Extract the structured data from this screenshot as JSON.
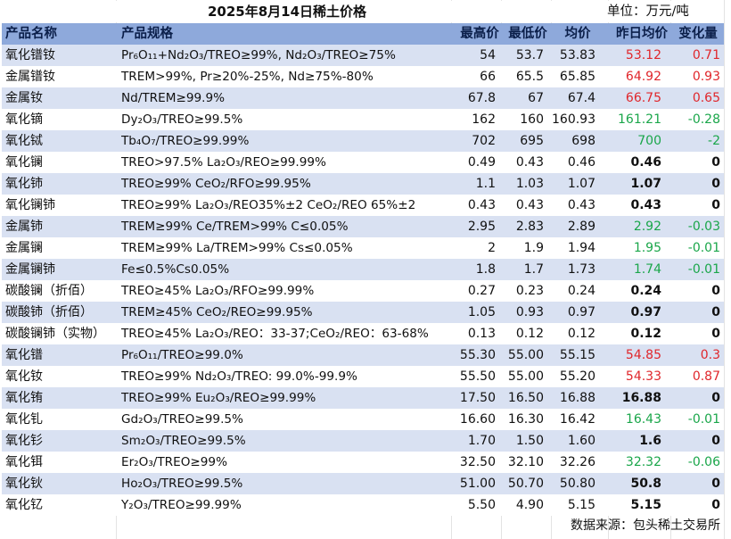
{
  "title": "2025年8月14日稀土价格",
  "unit": "单位：万元/吨",
  "headers": {
    "name": "产品名称",
    "spec": "产品规格",
    "high": "最高价",
    "low": "最低价",
    "avg": "均价",
    "prev": "昨日均价",
    "change": "变化量"
  },
  "rows": [
    {
      "name": "氧化镨钕",
      "spec": "Pr₆O₁₁+Nd₂O₃/TREO≥99%, Nd₂O₃/TREO≥75%",
      "high": "54",
      "low": "53.7",
      "avg": "53.83",
      "prev": "53.12",
      "change": "0.71",
      "trend": "up"
    },
    {
      "name": "金属镨钕",
      "spec": "TREM>99%, Pr≥20%-25%, Nd≥75%-80%",
      "high": "66",
      "low": "65.5",
      "avg": "65.85",
      "prev": "64.92",
      "change": "0.93",
      "trend": "up"
    },
    {
      "name": "金属钕",
      "spec": "Nd/TREM≥99.9%",
      "high": "67.8",
      "low": "67",
      "avg": "67.4",
      "prev": "66.75",
      "change": "0.65",
      "trend": "up"
    },
    {
      "name": "氧化镝",
      "spec": "Dy₂O₃/TREO≥99.5%",
      "high": "162",
      "low": "160",
      "avg": "160.93",
      "prev": "161.21",
      "change": "-0.28",
      "trend": "down"
    },
    {
      "name": "氧化铽",
      "spec": "Tb₄O₇/TREO≥99.99%",
      "high": "702",
      "low": "695",
      "avg": "698",
      "prev": "700",
      "change": "-2",
      "trend": "down"
    },
    {
      "name": "氧化镧",
      "spec": "TREO>97.5% La₂O₃/REO≥99.99%",
      "high": "0.49",
      "low": "0.43",
      "avg": "0.46",
      "prev": "0.46",
      "change": "0",
      "trend": "flat"
    },
    {
      "name": "氧化铈",
      "spec": "TREO≥99% CeO₂/RFO≥99.95%",
      "high": "1.1",
      "low": "1.03",
      "avg": "1.07",
      "prev": "1.07",
      "change": "0",
      "trend": "flat"
    },
    {
      "name": "氧化镧铈",
      "spec": "TREO≥99% La₂O₃/REO35%±2 CeO₂/REO 65%±2",
      "high": "0.43",
      "low": "0.43",
      "avg": "0.43",
      "prev": "0.43",
      "change": "0",
      "trend": "flat"
    },
    {
      "name": "金属铈",
      "spec": "TREM≥99% Ce/TREM>99% C≤0.05%",
      "high": "2.95",
      "low": "2.83",
      "avg": "2.89",
      "prev": "2.92",
      "change": "-0.03",
      "trend": "down"
    },
    {
      "name": "金属镧",
      "spec": "TREM≥99% La/TREM>99% Cs≤0.05%",
      "high": "2",
      "low": "1.9",
      "avg": "1.94",
      "prev": "1.95",
      "change": "-0.01",
      "trend": "down"
    },
    {
      "name": "金属镧铈",
      "spec": "Fe≤0.5%Cs0.05%",
      "high": "1.8",
      "low": "1.7",
      "avg": "1.73",
      "prev": "1.74",
      "change": "-0.01",
      "trend": "down"
    },
    {
      "name": "碳酸镧（折佰）",
      "spec": "TREO≥45% La₂O₃/RFO≥99.99%",
      "high": "0.27",
      "low": "0.23",
      "avg": "0.24",
      "prev": "0.24",
      "change": "0",
      "trend": "flat"
    },
    {
      "name": "碳酸铈（折佰）",
      "spec": "TREM≥45% CeO₂/REO≥99.95%",
      "high": "1.05",
      "low": "0.93",
      "avg": "0.97",
      "prev": "0.97",
      "change": "0",
      "trend": "flat"
    },
    {
      "name": "碳酸镧铈（实物）",
      "spec": "TREO≥45% La₂O₃/REO：33-37;CeO₂/REO：63-68%",
      "high": "0.13",
      "low": "0.12",
      "avg": "0.12",
      "prev": "0.12",
      "change": "0",
      "trend": "flat"
    },
    {
      "name": "氧化镨",
      "spec": "Pr₆O₁₁/TREO≥99.0%",
      "high": "55.30",
      "low": "55.00",
      "avg": "55.15",
      "prev": "54.85",
      "change": "0.3",
      "trend": "up"
    },
    {
      "name": "氧化钕",
      "spec": "TREO≥99% Nd₂O₃/TREO: 99.0%-99.9%",
      "high": "55.50",
      "low": "55.00",
      "avg": "55.20",
      "prev": "54.33",
      "change": "0.87",
      "trend": "up"
    },
    {
      "name": "氧化铕",
      "spec": "TREO≥99% Eu₂O₃/REO≥99.99%",
      "high": "17.50",
      "low": "16.50",
      "avg": "16.88",
      "prev": "16.88",
      "change": "0",
      "trend": "flat"
    },
    {
      "name": "氧化钆",
      "spec": "Gd₂O₃/TREO≥99.5%",
      "high": "16.60",
      "low": "16.30",
      "avg": "16.42",
      "prev": "16.43",
      "change": "-0.01",
      "trend": "down"
    },
    {
      "name": "氧化钐",
      "spec": "Sm₂O₃/TREO≥99.5%",
      "high": "1.70",
      "low": "1.50",
      "avg": "1.60",
      "prev": "1.6",
      "change": "0",
      "trend": "flat"
    },
    {
      "name": "氧化铒",
      "spec": "Er₂O₃/TREO≥99%",
      "high": "32.50",
      "low": "32.10",
      "avg": "32.26",
      "prev": "32.32",
      "change": "-0.06",
      "trend": "down"
    },
    {
      "name": "氧化钬",
      "spec": "Ho₂O₃/TREO≥99.5%",
      "high": "51.00",
      "low": "50.70",
      "avg": "50.80",
      "prev": "50.8",
      "change": "0",
      "trend": "flat"
    },
    {
      "name": "氧化钇",
      "spec": "Y₂O₃/TREO≥99.99%",
      "high": "5.50",
      "low": "4.90",
      "avg": "5.15",
      "prev": "5.15",
      "change": "0",
      "trend": "flat"
    }
  ],
  "source": "数据来源：包头稀土交易所",
  "colors": {
    "header_bg": "#8ea9db",
    "alt_row_bg": "#d9e1f2",
    "up": "#e0262b",
    "down": "#1aa64a"
  }
}
